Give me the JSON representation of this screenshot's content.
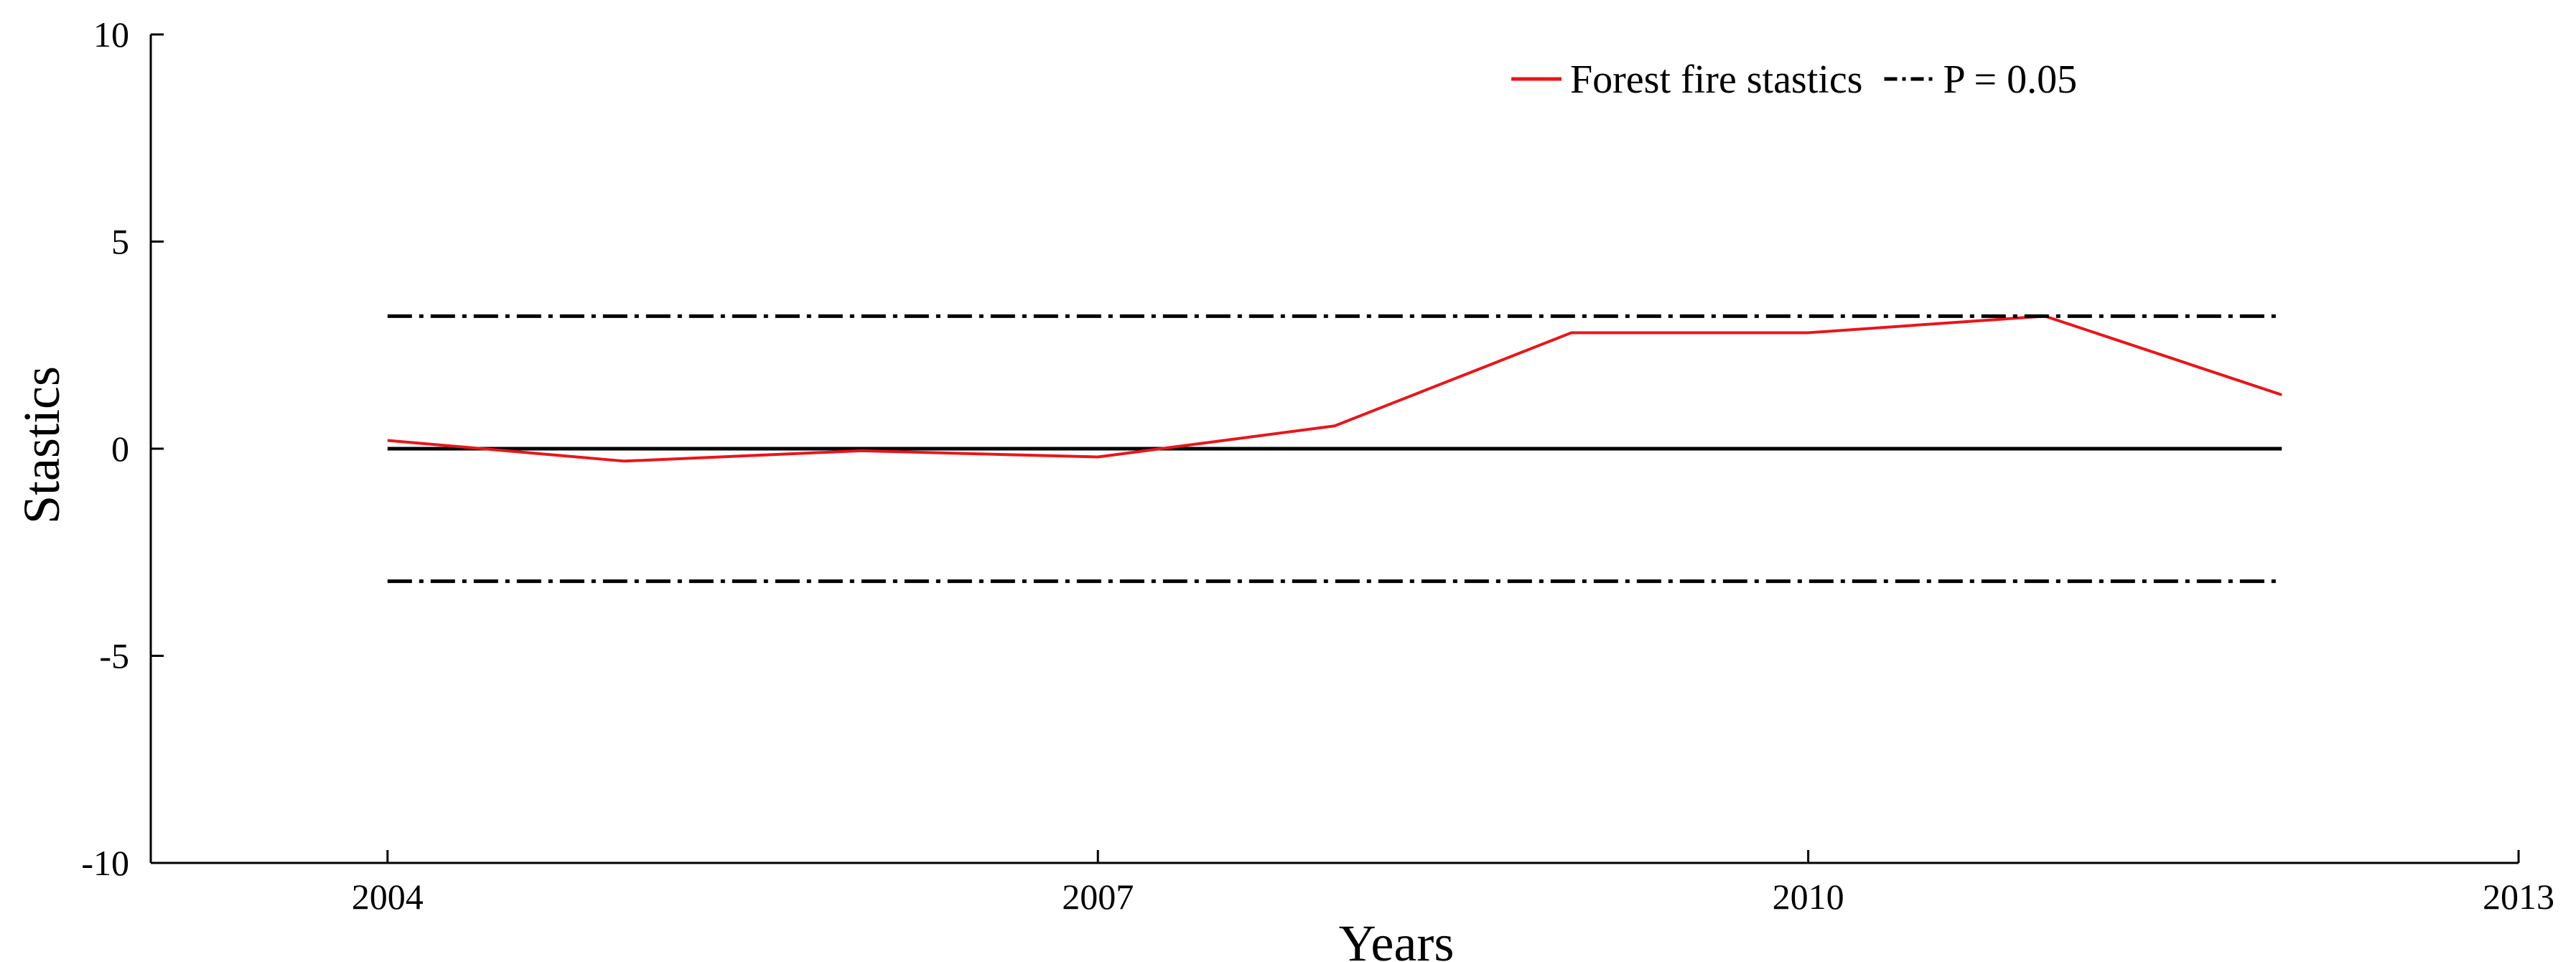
{
  "chart_data": {
    "type": "line",
    "title": "",
    "xlabel": "Years",
    "ylabel": "Stastics",
    "xlim": [
      2003,
      2013
    ],
    "ylim": [
      -10,
      10
    ],
    "xticks": [
      2004,
      2007,
      2010,
      2013
    ],
    "yticks": [
      10,
      5,
      0,
      -5,
      -10
    ],
    "grid": false,
    "legend_position": "top-right",
    "series": [
      {
        "name": "Forest fire stastics",
        "color": "#e8161b",
        "style": "solid",
        "x": [
          2004,
          2005,
          2006,
          2007,
          2008,
          2009,
          2010,
          2011,
          2012
        ],
        "y": [
          0.2,
          -0.3,
          -0.05,
          -0.2,
          0.55,
          2.8,
          2.8,
          3.2,
          1.3
        ]
      },
      {
        "name": "P = 0.05",
        "color": "#000000",
        "style": "dash-dot",
        "x": [
          2004,
          2012
        ],
        "y": [
          3.2,
          3.2
        ]
      },
      {
        "name": "",
        "color": "#000000",
        "style": "dash-dot",
        "x": [
          2004,
          2012
        ],
        "y": [
          -3.2,
          -3.2
        ]
      }
    ],
    "reference_line": {
      "y": 0,
      "x": [
        2004,
        2012
      ],
      "color": "#000000",
      "style": "solid"
    }
  }
}
